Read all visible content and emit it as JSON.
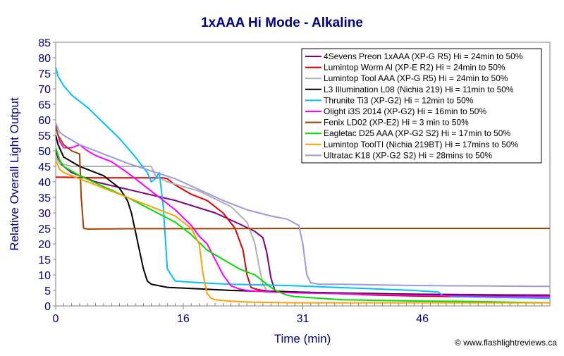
{
  "chart_data": {
    "type": "line",
    "title": "1xAAA Hi Mode - Alkaline",
    "xlabel": "Time (min)",
    "ylabel": "Relative Overall Light Output",
    "xlim": [
      0,
      62
    ],
    "ylim": [
      0,
      85
    ],
    "xticks": [
      0,
      16,
      31,
      46
    ],
    "yticks": [
      0,
      5,
      10,
      15,
      20,
      25,
      30,
      35,
      40,
      45,
      50,
      55,
      60,
      65,
      70,
      75,
      80,
      85
    ],
    "grid": false,
    "legend_position": "top-right",
    "watermark": "© www.flashlightreviews.ca",
    "colors": {
      "title": "#000080",
      "axis_label": "#000080",
      "tick_label": "#000080",
      "plot_bg": "#ffffff",
      "outer_bg": "#ffffff",
      "frame": "#808080"
    },
    "series": [
      {
        "name": "4Sevens Preon 1xAAA (XP-G R5) Hi = 24min to 50%",
        "color": "#800080",
        "x": [
          0,
          0.5,
          2,
          5,
          10,
          15,
          20,
          23,
          25,
          26,
          26.5,
          27,
          27.5,
          28,
          30,
          35,
          40,
          45,
          50,
          55,
          62
        ],
        "y": [
          50,
          46,
          43,
          40,
          37,
          34,
          30,
          26.5,
          24,
          22,
          17,
          9,
          5,
          4.5,
          4.3,
          4.1,
          3.9,
          3.8,
          3.7,
          3.6,
          3.5
        ]
      },
      {
        "name": "Lumintop Worm Al (XP-E R2) Hi = 24min to 50%",
        "color": "#e00000",
        "x": [
          0,
          1,
          5,
          10,
          13.5,
          14,
          15,
          17,
          19,
          21,
          22.5,
          23.5,
          24,
          24.5,
          25,
          26,
          30,
          35,
          40,
          45,
          50,
          55,
          62
        ],
        "y": [
          41.5,
          41.5,
          41.3,
          41.3,
          41.3,
          41,
          39,
          36,
          34,
          30,
          25,
          18,
          10,
          6,
          5.5,
          5,
          4.5,
          4,
          3.5,
          3.2,
          3,
          2.8,
          2.5
        ]
      },
      {
        "name": "Lumintop Tool AAA (XP-G R5) Hi = 24min to 50%",
        "color": "#b0b0b0",
        "x": [
          0,
          0.5,
          2,
          5,
          10,
          12,
          12.5,
          14,
          18,
          22,
          24,
          25,
          25.5,
          26,
          26.5,
          28,
          30,
          35,
          40,
          45,
          50,
          55,
          62
        ],
        "y": [
          48,
          46,
          45,
          45,
          45,
          45,
          42,
          40,
          37,
          32,
          27,
          20,
          13,
          7,
          5,
          4.5,
          4.3,
          4,
          3.8,
          3.6,
          3.5,
          3.3,
          3
        ]
      },
      {
        "name": "L3 Illumination L08 (Nichia 219) Hi = 11min to 50%",
        "color": "#000000",
        "x": [
          0,
          0.3,
          1,
          3,
          6,
          8,
          9,
          9.5,
          10,
          10.5,
          11,
          11.5,
          12,
          14,
          18,
          22,
          26,
          30,
          35,
          40,
          45,
          50,
          55,
          62
        ],
        "y": [
          55,
          52,
          48,
          45,
          42,
          38,
          34,
          30,
          24,
          18,
          12,
          8,
          7,
          6,
          5.5,
          5,
          4.7,
          4.5,
          4.2,
          4,
          3.7,
          3.5,
          3.3,
          3
        ]
      },
      {
        "name": "Thrunite Ti3 (XP-G2) Hi = 12min to 50%",
        "color": "#00c0ff",
        "x": [
          0,
          0.3,
          1,
          2,
          4,
          6,
          8,
          10,
          11.5,
          12,
          12.5,
          13,
          13.5,
          14,
          15,
          18,
          22,
          26,
          30,
          35,
          40,
          45,
          48,
          48.5,
          50,
          55,
          62
        ],
        "y": [
          77,
          74,
          71,
          68,
          64,
          59,
          54,
          48,
          43,
          40,
          41,
          43,
          32,
          12,
          8,
          7.5,
          7,
          6.8,
          6.5,
          6,
          5.5,
          5,
          4.5,
          3.5,
          3,
          2.8,
          2.5
        ]
      },
      {
        "name": "Olight i3S 2014 (XP-G2) Hi = 16min to 50%",
        "color": "#ff00ff",
        "x": [
          0,
          0.5,
          1,
          2,
          3,
          4,
          5,
          7,
          9,
          11,
          13,
          15,
          17,
          18,
          19,
          20,
          21,
          22,
          23,
          24,
          25,
          27,
          30,
          35,
          40,
          45,
          50,
          55,
          62
        ],
        "y": [
          58,
          53,
          51,
          51,
          52,
          50,
          48.5,
          46.5,
          43,
          39,
          35,
          31,
          26,
          22.5,
          20,
          15,
          10,
          6.5,
          5.5,
          5,
          4.8,
          4.5,
          4.2,
          4,
          3.7,
          3.5,
          3.3,
          3.1,
          3
        ]
      },
      {
        "name": "Fenix LD02 (XP-E2) Hi = 3 min to 50%",
        "color": "#a04000",
        "x": [
          0,
          0.3,
          1,
          2,
          3,
          3.2,
          3.5,
          4,
          10,
          20,
          30,
          40,
          50,
          62
        ],
        "y": [
          58,
          55,
          52,
          50,
          49,
          35,
          25,
          24.8,
          24.9,
          24.9,
          25,
          25,
          25,
          25
        ]
      },
      {
        "name": "Eagletac D25 AAA (XP-G2 S2) Hi = 17min to 50%",
        "color": "#00e000",
        "x": [
          0,
          0.5,
          1,
          3,
          6,
          9,
          12,
          15,
          17,
          19,
          21,
          23,
          25,
          26,
          27,
          28,
          29,
          30,
          33,
          36,
          40,
          45,
          50,
          55,
          62
        ],
        "y": [
          51,
          47,
          45,
          42,
          38.5,
          35,
          31,
          27,
          23,
          18,
          15,
          12,
          10,
          8,
          6,
          4.5,
          3.5,
          3,
          2.5,
          2,
          1.8,
          1.6,
          1.5,
          1.3,
          1
        ]
      },
      {
        "name": "Lumintop ToolTI (Nichia 219BT) Hi = 17mins to 50%",
        "color": "#ffa000",
        "x": [
          0,
          0.5,
          1,
          2,
          4,
          6,
          9,
          12,
          15,
          17,
          18,
          18.5,
          19,
          19.5,
          20,
          22,
          25,
          30,
          35,
          40,
          45,
          50,
          55,
          62
        ],
        "y": [
          47,
          44,
          43,
          42,
          40,
          38,
          35,
          32,
          29,
          25,
          20,
          10,
          4,
          2.5,
          2,
          1.5,
          1.2,
          1,
          1,
          1,
          1,
          1,
          1,
          1
        ]
      },
      {
        "name": "Ultratac K18 (XP-G2 S2) Hi = 28mins to 50%",
        "color": "#9999dd",
        "x": [
          0,
          0.5,
          1,
          3,
          6,
          9,
          12,
          15,
          18,
          21,
          24,
          27,
          29,
          30.5,
          31,
          31.5,
          32,
          33,
          36,
          40,
          45,
          50,
          55,
          62
        ],
        "y": [
          59,
          56,
          55,
          52,
          49,
          46,
          43.5,
          41,
          37.5,
          34,
          31,
          29,
          28,
          26,
          20,
          10,
          7.5,
          7,
          7,
          6.8,
          6.6,
          6.5,
          6.4,
          6.3
        ]
      }
    ]
  }
}
